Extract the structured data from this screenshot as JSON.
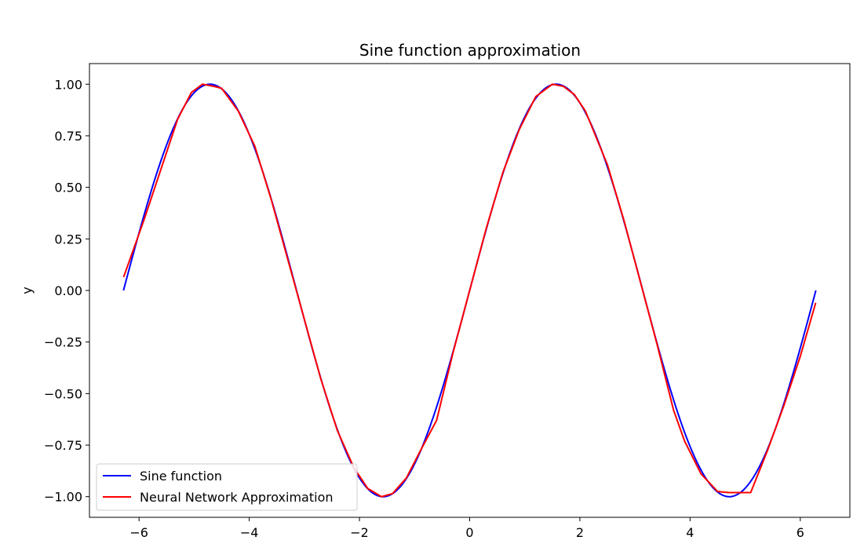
{
  "chart_data": {
    "type": "line",
    "title": "Sine function approximation",
    "xlabel": "",
    "ylabel": "y",
    "xlim": [
      -6.9,
      6.9
    ],
    "ylim": [
      -1.1,
      1.1
    ],
    "xticks": [
      -6,
      -4,
      -2,
      0,
      2,
      4,
      6
    ],
    "xtick_labels": [
      "−6",
      "−4",
      "−2",
      "0",
      "2",
      "4",
      "6"
    ],
    "yticks": [
      -1.0,
      -0.75,
      -0.5,
      -0.25,
      0.0,
      0.25,
      0.5,
      0.75,
      1.0
    ],
    "ytick_labels": [
      "−1.00",
      "−0.75",
      "−0.50",
      "−0.25",
      "0.00",
      "0.25",
      "0.50",
      "0.75",
      "1.00"
    ],
    "grid": false,
    "legend_position": "lower-left",
    "series": [
      {
        "name": "Sine function",
        "color": "#0000ff",
        "function": "sin",
        "x_range": [
          -6.283,
          6.283
        ]
      },
      {
        "name": "Neural Network Approximation",
        "color": "#ff0000",
        "x": [
          -6.28,
          -5.9,
          -5.3,
          -5.05,
          -4.85,
          -4.65,
          -4.5,
          -4.2,
          -3.9,
          -3.6,
          -3.3,
          -3.0,
          -2.7,
          -2.4,
          -2.1,
          -1.85,
          -1.6,
          -1.4,
          -1.15,
          -0.9,
          -0.6,
          -0.3,
          0.0,
          0.3,
          0.6,
          0.9,
          1.2,
          1.5,
          1.7,
          1.9,
          2.1,
          2.5,
          2.8,
          3.1,
          3.4,
          3.7,
          3.9,
          4.2,
          4.5,
          4.7,
          4.9,
          5.1,
          5.4,
          5.7,
          6.0,
          6.28
        ],
        "y": [
          0.065,
          0.35,
          0.83,
          0.96,
          1.0,
          0.99,
          0.98,
          0.87,
          0.7,
          0.44,
          0.15,
          -0.14,
          -0.43,
          -0.68,
          -0.86,
          -0.96,
          -1.0,
          -0.985,
          -0.91,
          -0.78,
          -0.63,
          -0.3,
          0.0,
          0.3,
          0.57,
          0.78,
          0.94,
          1.0,
          0.99,
          0.95,
          0.87,
          0.61,
          0.34,
          0.04,
          -0.26,
          -0.58,
          -0.73,
          -0.89,
          -0.975,
          -0.98,
          -0.98,
          -0.98,
          -0.78,
          -0.56,
          -0.32,
          -0.06
        ]
      }
    ]
  }
}
